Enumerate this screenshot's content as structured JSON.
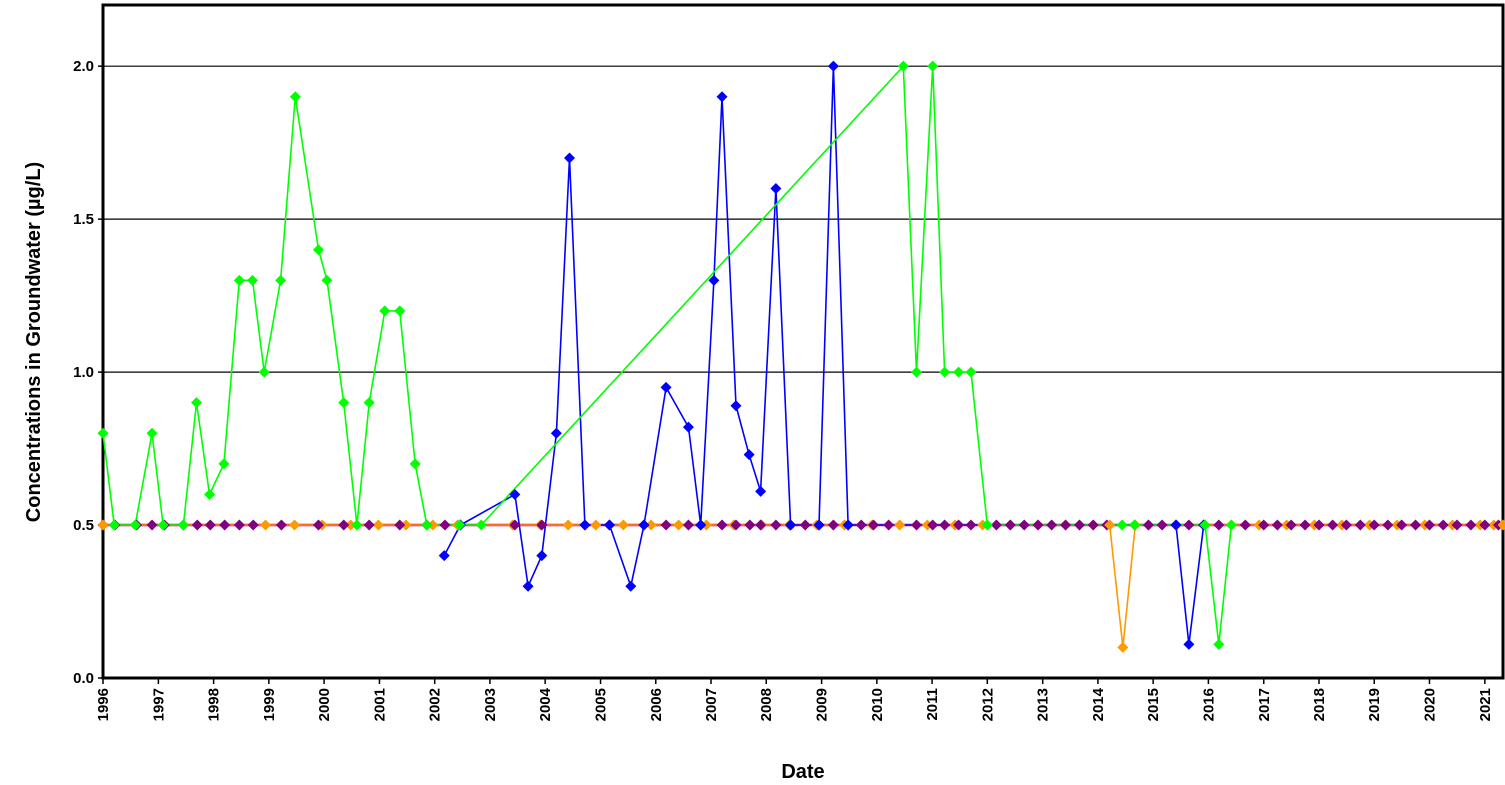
{
  "chart_data": {
    "type": "line",
    "title": "",
    "xlabel": "Date",
    "ylabel": "Concentrations in Groundwater (µg/L)",
    "xlim": [
      "1996-01-01",
      "2021-05-01"
    ],
    "ylim": [
      0.0,
      2.2
    ],
    "y_ticks": [
      "0.0",
      "0.5",
      "1.0",
      "1.5",
      "2.0"
    ],
    "x_ticks": [
      "1996",
      "1997",
      "1998",
      "1999",
      "2000",
      "2001",
      "2002",
      "2003",
      "2004",
      "2005",
      "2006",
      "2007",
      "2008",
      "2009",
      "2010",
      "2011",
      "2012",
      "2013",
      "2014",
      "2015",
      "2016",
      "2017",
      "2018",
      "2019",
      "2020",
      "2021"
    ],
    "grid": "horizontal",
    "legend": "none",
    "series": [
      {
        "color": "#00ff00",
        "points": [
          [
            "1996-01-01",
            0.8
          ],
          [
            "1996-03-15",
            0.5
          ],
          [
            "1996-08-01",
            0.5
          ],
          [
            "1996-11-20",
            0.8
          ],
          [
            "1997-02-01",
            0.5
          ],
          [
            "1997-06-15",
            0.5
          ],
          [
            "1997-09-10",
            0.9
          ],
          [
            "1997-12-05",
            0.6
          ],
          [
            "1998-03-10",
            0.7
          ],
          [
            "1998-06-20",
            1.3
          ],
          [
            "1998-09-15",
            1.3
          ],
          [
            "1998-12-01",
            1.0
          ],
          [
            "1999-03-20",
            1.3
          ],
          [
            "1999-06-25",
            1.9
          ],
          [
            "1999-11-25",
            1.4
          ],
          [
            "2000-01-20",
            1.3
          ],
          [
            "2000-05-10",
            0.9
          ],
          [
            "2000-08-05",
            0.5
          ],
          [
            "2000-10-25",
            0.9
          ],
          [
            "2001-02-05",
            1.2
          ],
          [
            "2001-05-15",
            1.2
          ],
          [
            "2001-08-25",
            0.7
          ],
          [
            "2001-11-10",
            0.5
          ],
          [
            "2002-06-15",
            0.5
          ],
          [
            "2002-11-05",
            0.5
          ],
          [
            "2010-06-25",
            2.0
          ],
          [
            "2010-09-20",
            1.0
          ],
          [
            "2011-01-05",
            2.0
          ],
          [
            "2011-03-25",
            1.0
          ],
          [
            "2011-06-25",
            1.0
          ],
          [
            "2011-09-15",
            1.0
          ],
          [
            "2012-01-01",
            0.5
          ],
          [
            "2014-06-10",
            0.5
          ],
          [
            "2014-09-01",
            0.5
          ],
          [
            "2015-12-10",
            0.5
          ],
          [
            "2016-03-10",
            0.11
          ],
          [
            "2016-06-01",
            0.5
          ]
        ]
      },
      {
        "color": "#0000ff",
        "points": [
          [
            "2002-03-05",
            0.4
          ],
          [
            "2002-06-20",
            0.5
          ],
          [
            "2003-06-15",
            0.6
          ],
          [
            "2003-09-10",
            0.3
          ],
          [
            "2003-12-10",
            0.4
          ],
          [
            "2004-03-15",
            0.8
          ],
          [
            "2004-06-10",
            1.7
          ],
          [
            "2004-09-20",
            0.5
          ],
          [
            "2005-03-01",
            0.5
          ],
          [
            "2005-07-20",
            0.3
          ],
          [
            "2005-10-15",
            0.5
          ],
          [
            "2006-03-10",
            0.95
          ],
          [
            "2006-08-05",
            0.82
          ],
          [
            "2006-10-25",
            0.5
          ],
          [
            "2007-01-20",
            1.3
          ],
          [
            "2007-03-15",
            1.9
          ],
          [
            "2007-06-15",
            0.89
          ],
          [
            "2007-09-10",
            0.73
          ],
          [
            "2007-11-25",
            0.61
          ],
          [
            "2008-03-05",
            1.6
          ],
          [
            "2008-06-10",
            0.5
          ],
          [
            "2008-12-15",
            0.5
          ],
          [
            "2009-03-20",
            2.0
          ],
          [
            "2009-06-25",
            0.5
          ],
          [
            "2015-06-01",
            0.5
          ],
          [
            "2015-08-25",
            0.11
          ],
          [
            "2015-12-01",
            0.5
          ]
        ]
      },
      {
        "color": "#ff9900",
        "points": [
          [
            "1996-01-01",
            0.5
          ],
          [
            "2014-03-20",
            0.5
          ],
          [
            "2014-06-15",
            0.1
          ],
          [
            "2014-09-05",
            0.5
          ],
          [
            "2021-05-01",
            0.5
          ]
        ]
      },
      {
        "color": "#c8006e",
        "points": [
          [
            "1996-01-01",
            0.5
          ],
          [
            "2021-05-01",
            0.5
          ]
        ]
      }
    ],
    "constant_markers": [
      {
        "color": "#ff9900",
        "y": 0.5,
        "dates": [
          "1998-12-10",
          "1999-06-20",
          "1999-12-20",
          "2000-06-25",
          "2000-12-25",
          "2001-06-25",
          "2001-12-20",
          "2002-06-01",
          "2003-06-01",
          "2003-12-01",
          "2004-06-01",
          "2004-12-01",
          "2005-06-01",
          "2005-12-01",
          "2006-06-01",
          "2006-12-01",
          "2007-06-01",
          "2007-12-01",
          "2008-06-01",
          "2008-12-01",
          "2009-06-01",
          "2009-12-01",
          "2010-06-01",
          "2010-12-01",
          "2011-06-01",
          "2011-12-01",
          "2012-06-01",
          "2012-12-01",
          "2013-06-01",
          "2013-12-01",
          "2014-12-01",
          "2015-06-01",
          "2015-12-01",
          "2016-06-01",
          "2016-12-01",
          "2017-06-01",
          "2017-12-01",
          "2018-06-01",
          "2018-12-01",
          "2019-06-01",
          "2019-12-01",
          "2020-06-01",
          "2020-12-01",
          "2021-03-01"
        ]
      },
      {
        "color": "#800080",
        "y": 0.5,
        "dates": [
          "1996-01-01",
          "1996-03-20",
          "1996-08-10",
          "1996-11-20",
          "1997-02-10",
          "1997-06-15",
          "1997-09-15",
          "1997-12-10",
          "1998-03-15",
          "1998-06-20",
          "1998-09-20",
          "1999-03-25",
          "1999-11-25",
          "2000-05-10",
          "2000-10-25",
          "2001-05-15",
          "2001-11-10",
          "2002-03-10",
          "2002-06-20",
          "2003-06-15",
          "2003-12-10",
          "2004-09-20",
          "2005-03-01",
          "2005-10-15",
          "2006-03-10",
          "2006-08-05",
          "2006-10-25",
          "2007-03-15",
          "2007-06-15",
          "2007-09-15",
          "2007-11-25",
          "2008-03-05",
          "2008-06-10",
          "2008-09-15",
          "2008-12-15",
          "2009-03-20",
          "2009-06-25",
          "2009-09-20",
          "2009-12-10",
          "2010-03-20",
          "2010-09-20",
          "2011-01-05",
          "2011-03-25",
          "2011-06-25",
          "2011-09-15",
          "2012-03-01",
          "2012-06-01",
          "2012-09-01",
          "2012-12-01",
          "2013-03-01",
          "2013-06-01",
          "2013-09-01",
          "2013-12-01",
          "2014-03-01",
          "2014-09-01",
          "2014-12-01",
          "2015-03-01",
          "2015-06-01",
          "2015-08-25",
          "2015-12-01",
          "2016-03-10",
          "2016-09-01",
          "2017-01-01",
          "2017-04-01",
          "2017-07-01",
          "2017-10-01",
          "2018-01-01",
          "2018-04-01",
          "2018-07-01",
          "2018-10-01",
          "2019-01-01",
          "2019-04-01",
          "2019-07-01",
          "2019-10-01",
          "2020-01-01",
          "2020-04-01",
          "2020-07-01",
          "2020-10-01",
          "2021-01-01",
          "2021-04-01"
        ]
      }
    ]
  }
}
